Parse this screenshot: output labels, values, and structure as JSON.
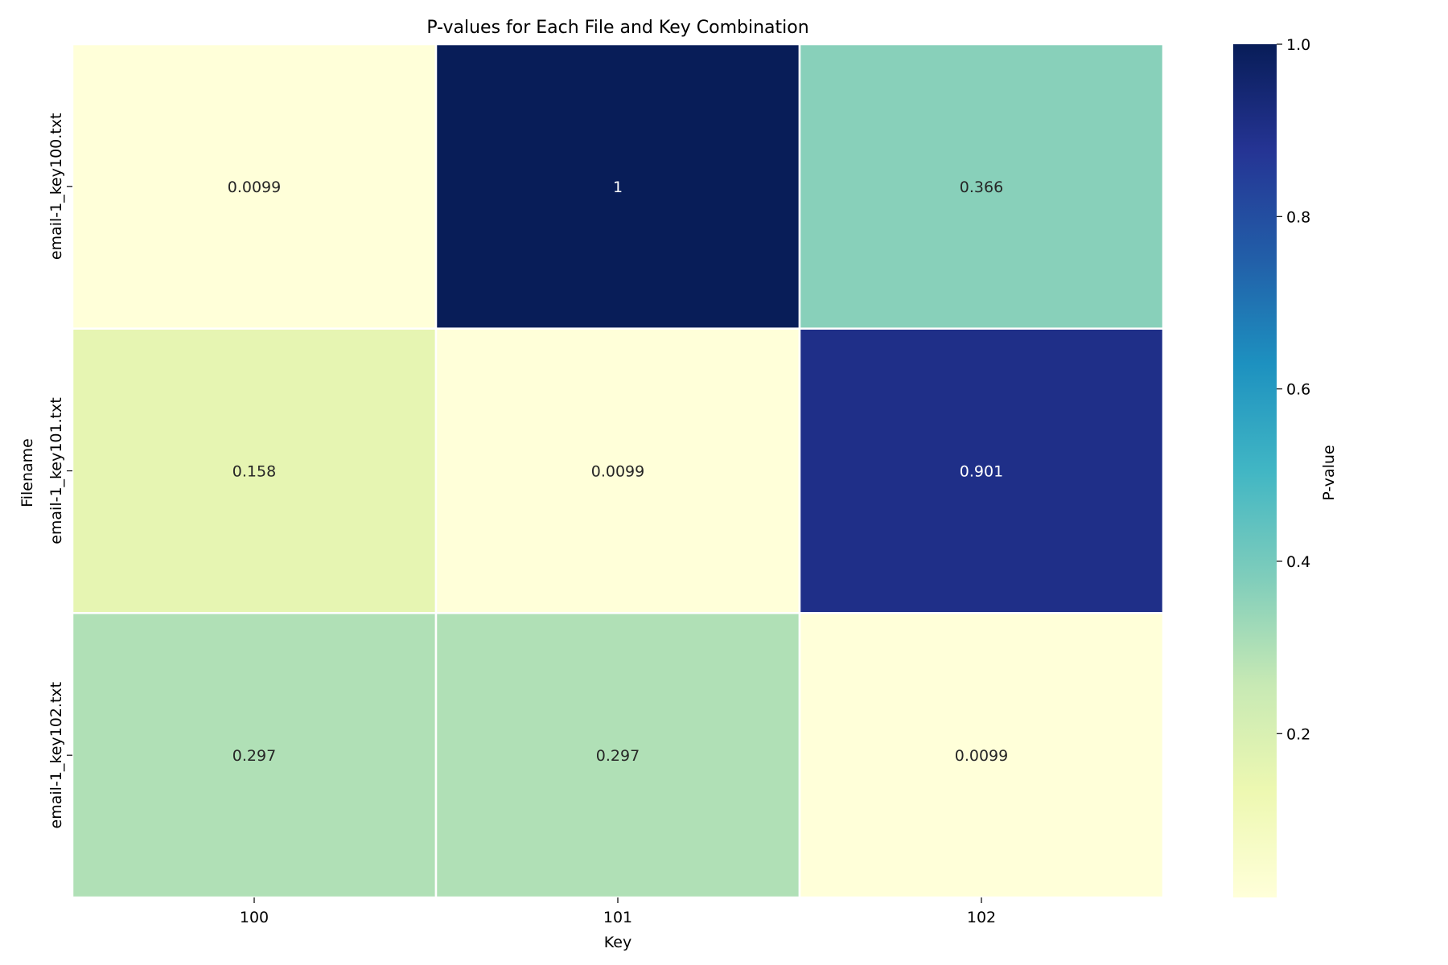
{
  "chart_data": {
    "type": "heatmap",
    "title": "P-values for Each File and Key Combination",
    "xlabel": "Key",
    "ylabel": "Filename",
    "x_categories": [
      "100",
      "101",
      "102"
    ],
    "y_categories": [
      "email-1_key100.txt",
      "email-1_key101.txt",
      "email-1_key102.txt"
    ],
    "values": [
      [
        0.0099,
        1,
        0.366
      ],
      [
        0.158,
        0.0099,
        0.901
      ],
      [
        0.297,
        0.297,
        0.0099
      ]
    ],
    "cell_labels": [
      [
        "0.0099",
        "1",
        "0.366"
      ],
      [
        "0.158",
        "0.0099",
        "0.901"
      ],
      [
        "0.297",
        "0.297",
        "0.0099"
      ]
    ],
    "colorbar": {
      "label": "P-value",
      "range": [
        0.0099,
        1.0
      ],
      "ticks": [
        0.2,
        0.4,
        0.6,
        0.8,
        1.0
      ],
      "tick_labels": [
        "0.2",
        "0.4",
        "0.6",
        "0.8",
        "1.0"
      ],
      "colormap": "YlGnBu",
      "colormap_stops": [
        "#ffffd9",
        "#edf8b1",
        "#c7e9b4",
        "#7fcdbb",
        "#41b6c4",
        "#1d91c0",
        "#225ea8",
        "#253494",
        "#081d58"
      ]
    },
    "cell_border_color": "#ffffff",
    "grid": false
  }
}
